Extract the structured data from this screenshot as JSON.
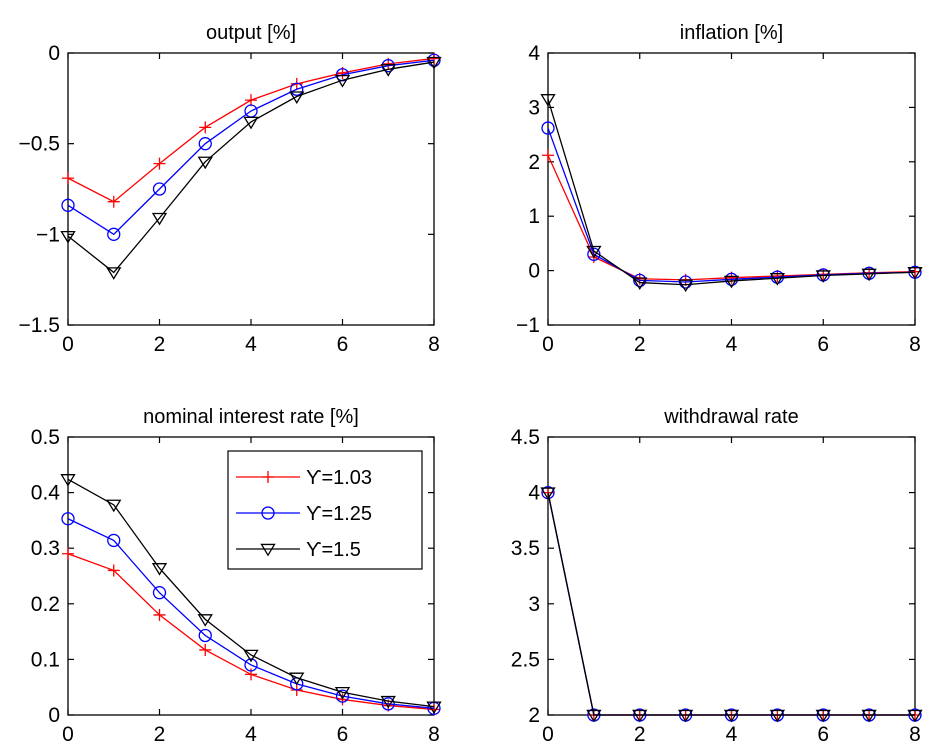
{
  "chart_data": [
    {
      "type": "line",
      "title": "output [%]",
      "xlim": [
        0,
        8
      ],
      "ylim": [
        -1.5,
        0
      ],
      "xticks": [
        "0",
        "2",
        "4",
        "6",
        "8"
      ],
      "xtick_values": [
        0,
        2,
        4,
        6,
        8
      ],
      "yticks": [
        "−1.5",
        "−1",
        "−0.5",
        "0"
      ],
      "ytick_values": [
        -1.5,
        -1,
        -0.5,
        0
      ],
      "x": [
        0,
        1,
        2,
        3,
        4,
        5,
        6,
        7,
        8
      ],
      "series": [
        {
          "color": "#ff0000",
          "marker": "plus",
          "values": [
            -0.69,
            -0.82,
            -0.61,
            -0.41,
            -0.26,
            -0.17,
            -0.11,
            -0.06,
            -0.03
          ]
        },
        {
          "color": "#0000ff",
          "marker": "circle",
          "values": [
            -0.84,
            -1.0,
            -0.75,
            -0.5,
            -0.32,
            -0.2,
            -0.12,
            -0.07,
            -0.04
          ]
        },
        {
          "color": "#000000",
          "marker": "triangle-down",
          "values": [
            -1.01,
            -1.21,
            -0.91,
            -0.6,
            -0.38,
            -0.24,
            -0.15,
            -0.09,
            -0.05
          ]
        }
      ]
    },
    {
      "type": "line",
      "title": "inflation [%]",
      "xlim": [
        0,
        8
      ],
      "ylim": [
        -1,
        4
      ],
      "xticks": [
        "0",
        "2",
        "4",
        "6",
        "8"
      ],
      "xtick_values": [
        0,
        2,
        4,
        6,
        8
      ],
      "yticks": [
        "−1",
        "0",
        "1",
        "2",
        "3",
        "4"
      ],
      "ytick_values": [
        -1,
        0,
        1,
        2,
        3,
        4
      ],
      "x": [
        0,
        1,
        2,
        3,
        4,
        5,
        6,
        7,
        8
      ],
      "series": [
        {
          "color": "#ff0000",
          "marker": "plus",
          "values": [
            2.12,
            0.25,
            -0.15,
            -0.17,
            -0.13,
            -0.1,
            -0.07,
            -0.04,
            -0.02
          ]
        },
        {
          "color": "#0000ff",
          "marker": "circle",
          "values": [
            2.62,
            0.3,
            -0.18,
            -0.21,
            -0.16,
            -0.12,
            -0.08,
            -0.05,
            -0.03
          ]
        },
        {
          "color": "#000000",
          "marker": "triangle-down",
          "values": [
            3.15,
            0.36,
            -0.22,
            -0.26,
            -0.19,
            -0.14,
            -0.09,
            -0.06,
            -0.03
          ]
        }
      ]
    },
    {
      "type": "line",
      "title": "nominal interest rate [%]",
      "xlim": [
        0,
        8
      ],
      "ylim": [
        0,
        0.5
      ],
      "xticks": [
        "0",
        "2",
        "4",
        "6",
        "8"
      ],
      "xtick_values": [
        0,
        2,
        4,
        6,
        8
      ],
      "yticks": [
        "0",
        "0.1",
        "0.2",
        "0.3",
        "0.4",
        "0.5"
      ],
      "ytick_values": [
        0,
        0.1,
        0.2,
        0.3,
        0.4,
        0.5
      ],
      "x": [
        0,
        1,
        2,
        3,
        4,
        5,
        6,
        7,
        8
      ],
      "legend": true,
      "legend_position": "top-right",
      "series": [
        {
          "name": "ϒ=1.03",
          "color": "#ff0000",
          "marker": "plus",
          "values": [
            0.29,
            0.26,
            0.18,
            0.117,
            0.073,
            0.045,
            0.028,
            0.017,
            0.01
          ]
        },
        {
          "name": "ϒ=1.25",
          "color": "#0000ff",
          "marker": "circle",
          "values": [
            0.353,
            0.314,
            0.22,
            0.143,
            0.09,
            0.056,
            0.034,
            0.02,
            0.012
          ]
        },
        {
          "name": "ϒ=1.5",
          "color": "#000000",
          "marker": "triangle-down",
          "values": [
            0.424,
            0.378,
            0.264,
            0.172,
            0.108,
            0.067,
            0.041,
            0.025,
            0.015
          ]
        }
      ]
    },
    {
      "type": "line",
      "title": "withdrawal rate",
      "xlim": [
        0,
        8
      ],
      "ylim": [
        2,
        4.5
      ],
      "xticks": [
        "0",
        "2",
        "4",
        "6",
        "8"
      ],
      "xtick_values": [
        0,
        2,
        4,
        6,
        8
      ],
      "yticks": [
        "2",
        "2.5",
        "3",
        "3.5",
        "4",
        "4.5"
      ],
      "ytick_values": [
        2,
        2.5,
        3,
        3.5,
        4,
        4.5
      ],
      "x": [
        0,
        1,
        2,
        3,
        4,
        5,
        6,
        7,
        8
      ],
      "series": [
        {
          "color": "#ff0000",
          "marker": "plus",
          "values": [
            4,
            2,
            2,
            2,
            2,
            2,
            2,
            2,
            2
          ]
        },
        {
          "color": "#0000ff",
          "marker": "circle",
          "values": [
            4,
            2,
            2,
            2,
            2,
            2,
            2,
            2,
            2
          ]
        },
        {
          "color": "#000000",
          "marker": "triangle-down",
          "values": [
            4,
            2,
            2,
            2,
            2,
            2,
            2,
            2,
            2
          ]
        }
      ]
    }
  ]
}
